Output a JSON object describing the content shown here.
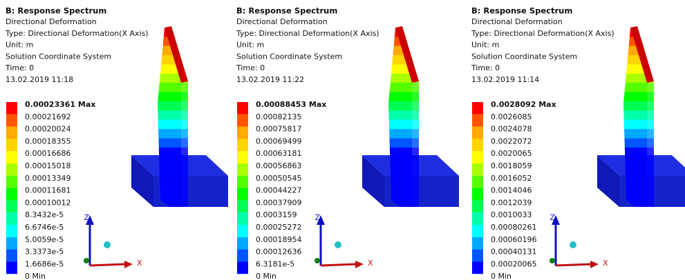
{
  "panels": [
    {
      "title": "B: Response Spectrum",
      "lines": [
        "Directional Deformation",
        "Type: Directional Deformation(X Axis)",
        "Unit: m",
        "Solution Coordinate System",
        "Time: 0",
        "13.02.2019 11:18"
      ],
      "legend": [
        "0.00023361 Max",
        "0.00021692",
        "0.00020024",
        "0.00018355",
        "0.00016686",
        "0.00015018",
        "0.00013349",
        "0.00011681",
        "0.00010012",
        "8.3432e-5",
        "6.6746e-5",
        "5.0059e-5",
        "3.3373e-5",
        "1.6686e-5",
        "0 Min"
      ],
      "axes": {
        "z": "Z",
        "x": "X"
      }
    },
    {
      "title": "B: Response Spectrum",
      "lines": [
        "Directional Deformation",
        "Type: Directional Deformation(X Axis)",
        "Unit: m",
        "Solution Coordinate System",
        "Time: 0",
        "13.02.2019 11:22"
      ],
      "legend": [
        "0.00088453 Max",
        "0.00082135",
        "0.00075817",
        "0.00069499",
        "0.00063181",
        "0.00056863",
        "0.00050545",
        "0.00044227",
        "0.00037909",
        "0.0003159",
        "0.00025272",
        "0.00018954",
        "0.00012636",
        "6.3181e-5",
        "0 Min"
      ],
      "axes": {
        "z": "Z",
        "x": "X"
      }
    },
    {
      "title": "B: Response Spectrum",
      "lines": [
        "Directional Deformation",
        "Type: Directional Deformation(X Axis)",
        "Unit: m",
        "Solution Coordinate System",
        "Time: 0",
        "13.02.2019 11:14"
      ],
      "legend": [
        "0.0028092 Max",
        "0.0026085",
        "0.0024078",
        "0.0022072",
        "0.0020065",
        "0.0018059",
        "0.0016052",
        "0.0014046",
        "0.0012039",
        "0.0010033",
        "0.00080261",
        "0.00060196",
        "0.00040131",
        "0.00020065",
        "0 Min"
      ],
      "axes": {
        "z": "Z",
        "x": "X"
      }
    }
  ]
}
